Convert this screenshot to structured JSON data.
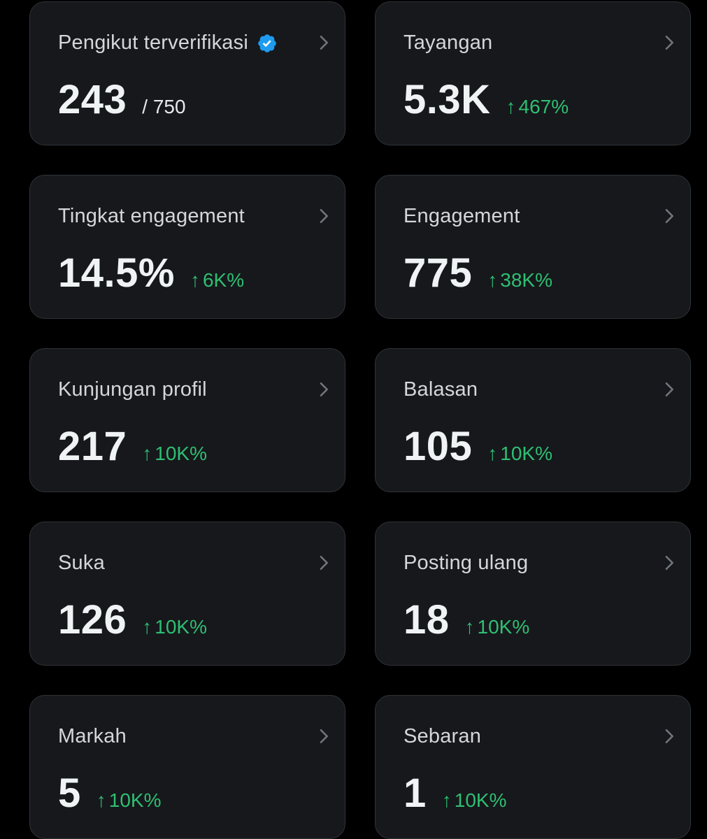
{
  "colors": {
    "background": "#000000",
    "card": "#16181c",
    "border": "#2f3336",
    "positive": "#2fbf71",
    "verified": "#1d9bf0"
  },
  "cards": [
    {
      "title": "Pengikut terverifikasi",
      "value": "243",
      "sub": "/ 750",
      "verified_icon": "verified-badge-icon"
    },
    {
      "title": "Tayangan",
      "value": "5.3K",
      "change_arrow": "↑",
      "change": "467%"
    },
    {
      "title": "Tingkat engagement",
      "value": "14.5%",
      "change_arrow": "↑",
      "change": "6K%"
    },
    {
      "title": "Engagement",
      "value": "775",
      "change_arrow": "↑",
      "change": "38K%"
    },
    {
      "title": "Kunjungan profil",
      "value": "217",
      "change_arrow": "↑",
      "change": "10K%"
    },
    {
      "title": "Balasan",
      "value": "105",
      "change_arrow": "↑",
      "change": "10K%"
    },
    {
      "title": "Suka",
      "value": "126",
      "change_arrow": "↑",
      "change": "10K%"
    },
    {
      "title": "Posting ulang",
      "value": "18",
      "change_arrow": "↑",
      "change": "10K%"
    },
    {
      "title": "Markah",
      "value": "5",
      "change_arrow": "↑",
      "change": "10K%"
    },
    {
      "title": "Sebaran",
      "value": "1",
      "change_arrow": "↑",
      "change": "10K%"
    }
  ]
}
